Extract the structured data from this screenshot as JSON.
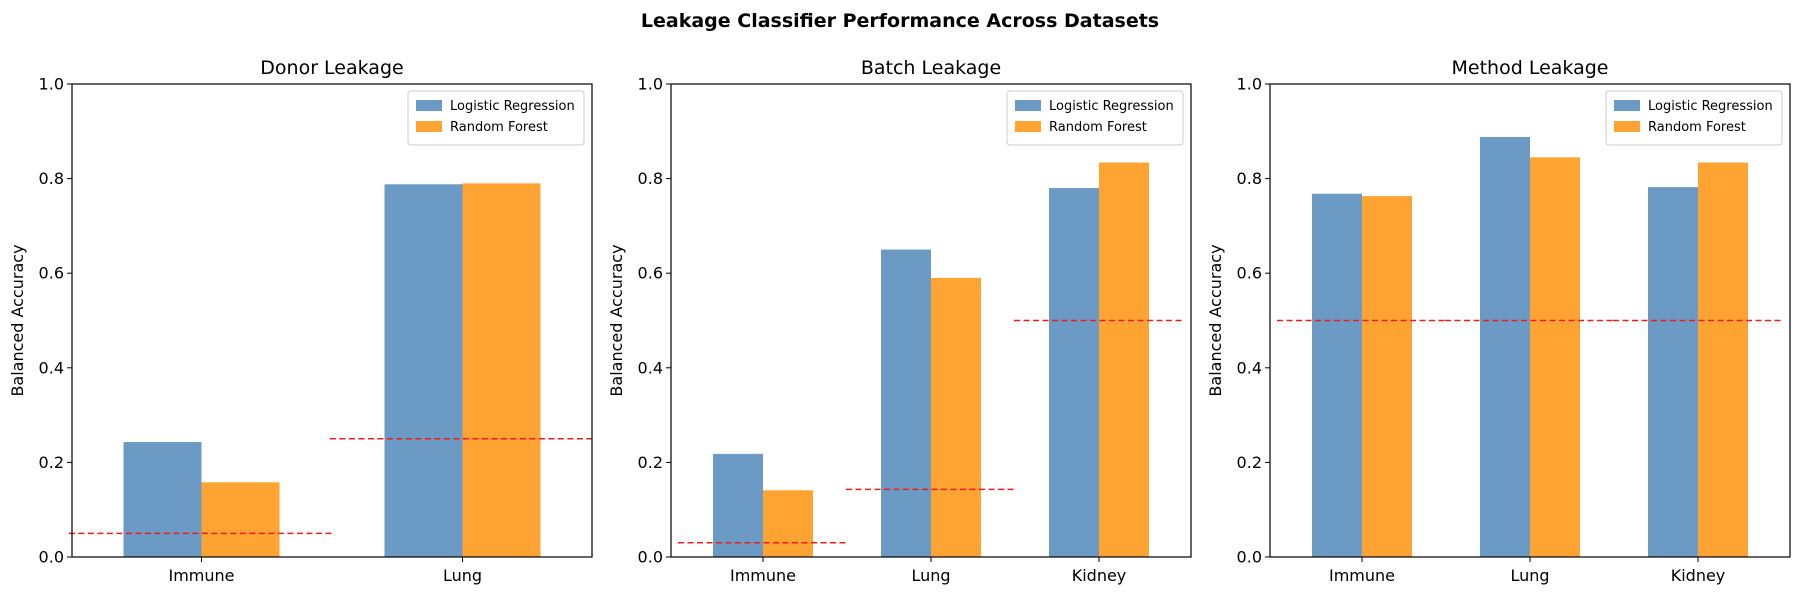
{
  "figure": {
    "title": "Leakage Classifier Performance Across Datasets"
  },
  "colors": {
    "logistic_regression": "#6b9ac4",
    "random_forest": "#ffa333",
    "baseline": "#ee1c1c"
  },
  "chart_data": [
    {
      "type": "bar",
      "title": "Donor Leakage",
      "ylabel": "Balanced Accuracy",
      "xlabel": "",
      "ylim": [
        0,
        1.0
      ],
      "yticks": [
        "0.0",
        "0.2",
        "0.4",
        "0.6",
        "0.8",
        "1.0"
      ],
      "categories": [
        "Immune",
        "Lung"
      ],
      "series": [
        {
          "name": "Logistic Regression",
          "values": [
            0.243,
            0.788
          ]
        },
        {
          "name": "Random Forest",
          "values": [
            0.158,
            0.79
          ]
        }
      ],
      "baseline": [
        0.05,
        0.25
      ],
      "legend": "top-right",
      "grid": false
    },
    {
      "type": "bar",
      "title": "Batch Leakage",
      "ylabel": "Balanced Accuracy",
      "xlabel": "",
      "ylim": [
        0,
        1.0
      ],
      "yticks": [
        "0.0",
        "0.2",
        "0.4",
        "0.6",
        "0.8",
        "1.0"
      ],
      "categories": [
        "Immune",
        "Lung",
        "Kidney"
      ],
      "series": [
        {
          "name": "Logistic Regression",
          "values": [
            0.218,
            0.65,
            0.78
          ]
        },
        {
          "name": "Random Forest",
          "values": [
            0.141,
            0.59,
            0.834
          ]
        }
      ],
      "baseline": [
        0.03,
        0.143,
        0.5
      ],
      "legend": "top-right",
      "grid": false
    },
    {
      "type": "bar",
      "title": "Method Leakage",
      "ylabel": "Balanced Accuracy",
      "xlabel": "",
      "ylim": [
        0,
        1.0
      ],
      "yticks": [
        "0.0",
        "0.2",
        "0.4",
        "0.6",
        "0.8",
        "1.0"
      ],
      "categories": [
        "Immune",
        "Lung",
        "Kidney"
      ],
      "series": [
        {
          "name": "Logistic Regression",
          "values": [
            0.768,
            0.888,
            0.782
          ]
        },
        {
          "name": "Random Forest",
          "values": [
            0.763,
            0.845,
            0.834
          ]
        }
      ],
      "baseline": [
        0.5,
        0.5,
        0.5
      ],
      "legend": "top-right",
      "grid": false
    }
  ]
}
